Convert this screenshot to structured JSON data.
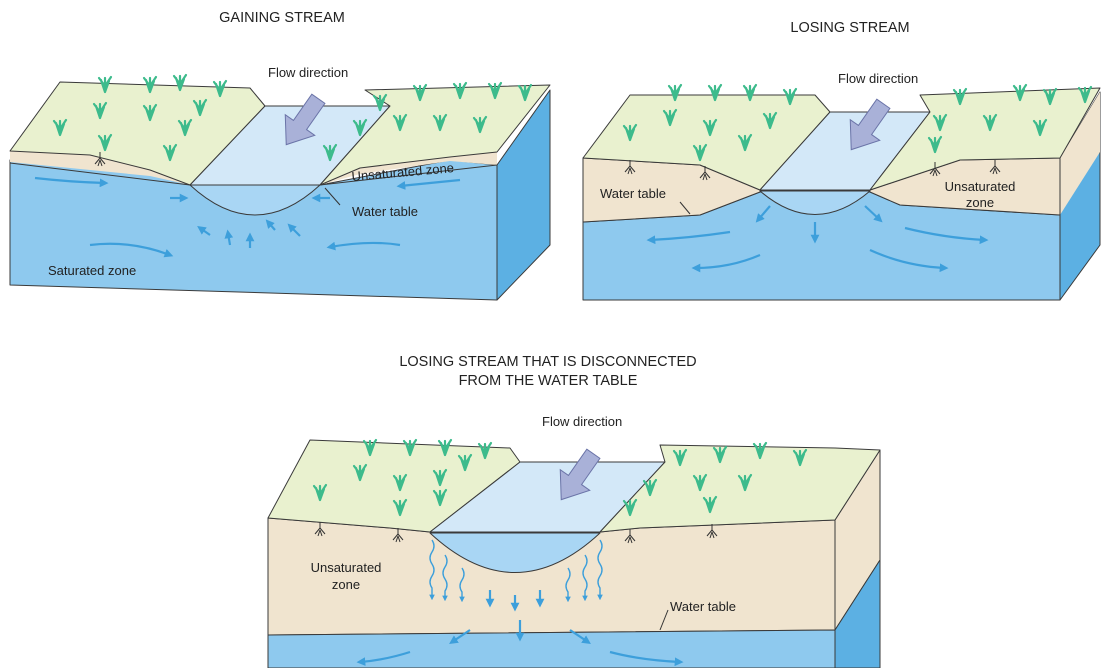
{
  "panels": [
    {
      "title_lines": [
        "GAINING STREAM"
      ],
      "flow_label": "Flow direction",
      "labels": [
        {
          "lines": [
            "Unsaturated zone"
          ]
        },
        {
          "lines": [
            "Water table"
          ]
        },
        {
          "lines": [
            "Saturated zone"
          ]
        }
      ]
    },
    {
      "title_lines": [
        "LOSING STREAM"
      ],
      "flow_label": "Flow direction",
      "labels": [
        {
          "lines": [
            "Water table"
          ]
        },
        {
          "lines": [
            "Unsaturated",
            "zone"
          ]
        }
      ]
    },
    {
      "title_lines": [
        "LOSING STREAM THAT IS DISCONNECTED",
        "FROM THE WATER TABLE"
      ],
      "flow_label": "Flow direction",
      "labels": [
        {
          "lines": [
            "Unsaturated",
            "zone"
          ]
        },
        {
          "lines": [
            "Water table"
          ]
        }
      ]
    }
  ]
}
